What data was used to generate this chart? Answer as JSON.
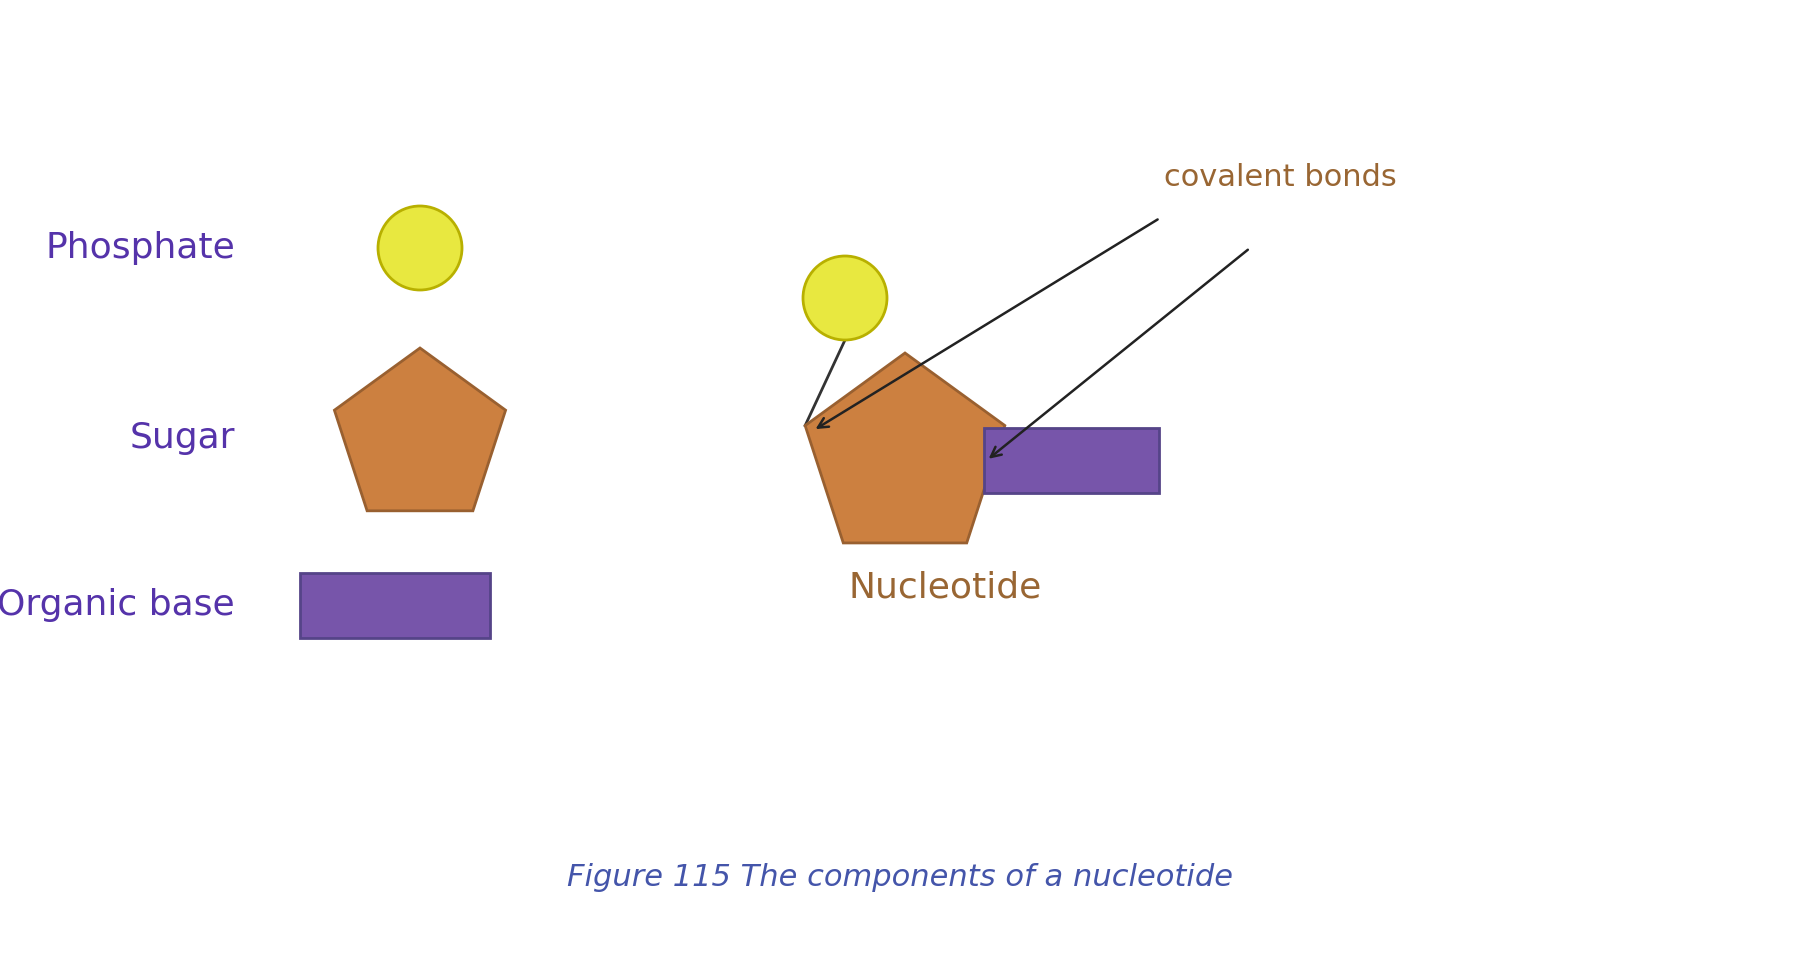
{
  "background_color": "#ffffff",
  "phosphate_color": "#e8e840",
  "phosphate_edge_color": "#b8b000",
  "sugar_color": "#cc8040",
  "sugar_edge_color": "#996030",
  "base_color": "#7755aa",
  "base_edge_color": "#554488",
  "text_label_color": "#5533aa",
  "arrow_color": "#222222",
  "covalent_label_color": "#996633",
  "nucleotide_label_color": "#996633",
  "fig_caption_color": "#4455aa",
  "label_phosphate": "Phosphate",
  "label_sugar": "Sugar",
  "label_organic_base": "Organic base",
  "label_covalent": "covalent bonds",
  "label_nucleotide": "Nucleotide",
  "label_caption": "Figure 115 The components of a nucleotide",
  "label_fontsize": 26,
  "caption_fontsize": 22,
  "covalent_fontsize": 22
}
